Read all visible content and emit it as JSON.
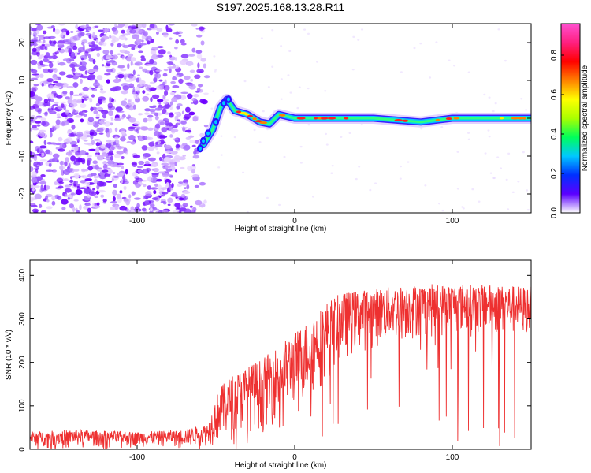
{
  "title": "S197.2025.168.13.28.R11",
  "chart_data": [
    {
      "type": "heatmap",
      "xlabel": "Height of straight line (km)",
      "ylabel": "Frequency (Hz)",
      "xlim": [
        -168,
        150
      ],
      "ylim": [
        -25,
        25
      ],
      "x_ticks": [
        -100,
        0,
        100
      ],
      "y_ticks": [
        -20,
        -10,
        0,
        10,
        20
      ],
      "colorbar": {
        "label": "Normalized spectral amplitude",
        "range": [
          0.0,
          0.96
        ],
        "ticks": [
          0.0,
          0.2,
          0.4,
          0.6,
          0.8
        ],
        "colors": [
          "#ffffff",
          "#5b00ff",
          "#0030ff",
          "#00c8ff",
          "#00ff5a",
          "#aaff00",
          "#ffff00",
          "#ff8000",
          "#ff0000",
          "#ff2080",
          "#ff50d0"
        ]
      },
      "features": {
        "noise_region_x": [
          -168,
          -55
        ],
        "signal_trace": [
          {
            "x": -58,
            "y": -7
          },
          {
            "x": -52,
            "y": -3
          },
          {
            "x": -47,
            "y": 3
          },
          {
            "x": -43,
            "y": 5
          },
          {
            "x": -38,
            "y": 2
          },
          {
            "x": -30,
            "y": 1
          },
          {
            "x": -22,
            "y": -1
          },
          {
            "x": -16,
            "y": -1.5
          },
          {
            "x": -10,
            "y": 1
          },
          {
            "x": 0,
            "y": 0
          },
          {
            "x": 20,
            "y": 0
          },
          {
            "x": 50,
            "y": 0
          },
          {
            "x": 80,
            "y": -1
          },
          {
            "x": 100,
            "y": 0
          },
          {
            "x": 130,
            "y": 0
          },
          {
            "x": 150,
            "y": 0
          }
        ]
      }
    },
    {
      "type": "line",
      "xlabel": "Height of straight line (km)",
      "ylabel": "SNR (10 * v/v)",
      "xlim": [
        -168,
        150
      ],
      "ylim": [
        0,
        435
      ],
      "x_ticks": [
        -100,
        0,
        100
      ],
      "y_ticks": [
        0,
        100,
        200,
        300,
        400
      ],
      "series": [
        {
          "color": "#ee3030",
          "envelope": [
            {
              "x": -168,
              "low": 5,
              "high": 40
            },
            {
              "x": -140,
              "low": 5,
              "high": 45
            },
            {
              "x": -100,
              "low": 5,
              "high": 40
            },
            {
              "x": -70,
              "low": 5,
              "high": 45
            },
            {
              "x": -55,
              "low": 5,
              "high": 60
            },
            {
              "x": -48,
              "low": 10,
              "high": 140
            },
            {
              "x": -40,
              "low": 20,
              "high": 170
            },
            {
              "x": -30,
              "low": 40,
              "high": 190
            },
            {
              "x": -20,
              "low": 40,
              "high": 210
            },
            {
              "x": -10,
              "low": 60,
              "high": 240
            },
            {
              "x": 0,
              "low": 90,
              "high": 270
            },
            {
              "x": 10,
              "low": 110,
              "high": 300
            },
            {
              "x": 20,
              "low": 150,
              "high": 340
            },
            {
              "x": 30,
              "low": 200,
              "high": 360
            },
            {
              "x": 50,
              "low": 230,
              "high": 370
            },
            {
              "x": 80,
              "low": 250,
              "high": 380
            },
            {
              "x": 110,
              "low": 260,
              "high": 380
            },
            {
              "x": 150,
              "low": 250,
              "high": 375
            }
          ]
        }
      ]
    }
  ]
}
